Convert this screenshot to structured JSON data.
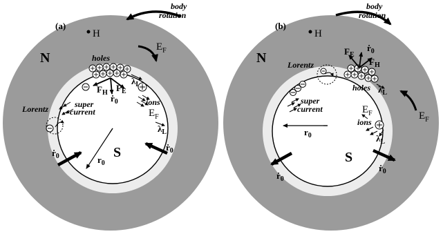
{
  "panels": [
    {
      "tag": "(a)",
      "field": "H",
      "rotation": [
        "body",
        "rotation"
      ],
      "ef_outer": "E",
      "ef_sub": "F",
      "normal_region": "N",
      "super_region": "S",
      "holes": "holes",
      "fh_main": "F",
      "fh_sub": "H",
      "fe_main": "F",
      "fe_sub": "E",
      "r0_dot": "ṙ",
      "r0_sub": "0",
      "supercurrent": [
        "super",
        "current"
      ],
      "ions": "ions",
      "ef_inner": "E",
      "ef_inner_sub": "F",
      "lorentz": "Lorentz",
      "lambda": "λ",
      "lambda_sub": "L",
      "r0_plain": "r",
      "r0_plain_sub": "0"
    },
    {
      "tag": "(b)",
      "field": "H",
      "rotation": [
        "body",
        "rotation"
      ],
      "ef_outer": "E",
      "ef_sub": "F",
      "normal_region": "N",
      "super_region": "S",
      "holes": "holes",
      "fe_main": "F",
      "fe_sub": "E",
      "fh_main": "F",
      "fh_sub": "H",
      "r0_dot": "ṙ",
      "r0_sub": "0",
      "supercurrent": [
        "super",
        "current"
      ],
      "ions": "ions",
      "ef_inner": "E",
      "ef_inner_sub": "F",
      "lorentz": "Lorentz",
      "lambda": "λ",
      "lambda_sub": "L",
      "r0_plain": "r",
      "r0_plain_sub": "0"
    }
  ],
  "colors": {
    "normal": "#9b9b9b",
    "penetration": "#ececec",
    "core": "#ffffff",
    "ink": "#000000"
  }
}
